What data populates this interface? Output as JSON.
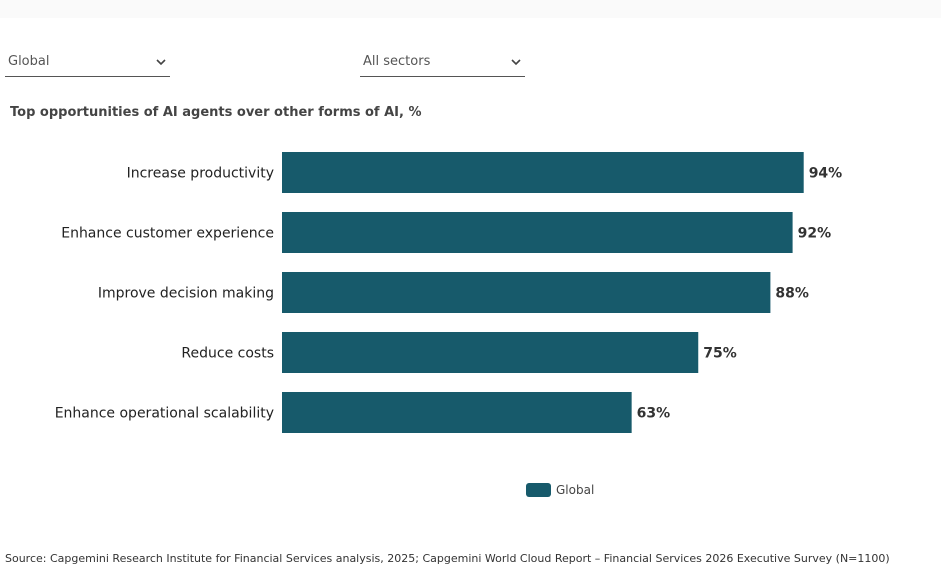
{
  "filters": {
    "region": {
      "selected": "Global",
      "icon": "chevron-down-icon"
    },
    "sector": {
      "selected": "All sectors",
      "icon": "chevron-down-icon"
    }
  },
  "colors": {
    "bar": "#175a6b",
    "label_text": "#222222",
    "value_text": "#333333"
  },
  "chart_data": {
    "type": "bar",
    "orientation": "horizontal",
    "title": "Top opportunities of AI agents over other forms of AI, %",
    "categories": [
      "Increase productivity",
      "Enhance customer experience",
      "Improve decision making",
      "Reduce costs",
      "Enhance operational scalability"
    ],
    "series": [
      {
        "name": "Global",
        "values": [
          94,
          92,
          88,
          75,
          63
        ],
        "value_labels": [
          "94%",
          "92%",
          "88%",
          "75%",
          "63%"
        ]
      }
    ],
    "xlim": [
      0,
      100
    ],
    "grid": false,
    "legend": "bottom-center"
  },
  "source": "Source: Capgemini Research Institute for Financial Services analysis, 2025; Capgemini World Cloud Report – Financial Services 2026 Executive Survey (N=1100)"
}
